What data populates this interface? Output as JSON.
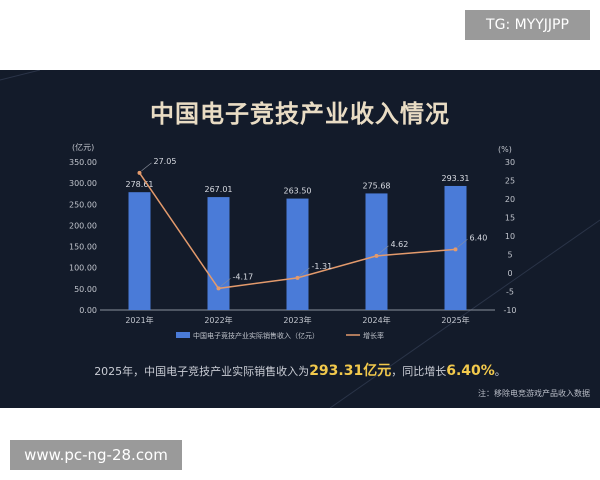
{
  "watermark_top": "TG: MYYJJPP",
  "watermark_bottom": "www.pc-ng-28.com",
  "summary": {
    "prefix": "2025年，中国电子竞技产业实际销售收入为",
    "value": "293.31亿元",
    "mid": "，同比增长",
    "growth": "6.40%",
    "suffix": "。"
  },
  "note": "注：移除电竞游戏产品收入数据",
  "chart_data": {
    "type": "bar",
    "title": "中国电子竞技产业收入情况",
    "categories": [
      "2021年",
      "2022年",
      "2023年",
      "2024年",
      "2025年"
    ],
    "y_left": {
      "unit": "(亿元)",
      "ylim": [
        0,
        350
      ],
      "ticks": [
        "0.00",
        "50.00",
        "100.00",
        "150.00",
        "200.00",
        "250.00",
        "300.00",
        "350.00"
      ]
    },
    "y_right": {
      "unit": "(%)",
      "ylim": [
        -10,
        30
      ],
      "ticks": [
        "-10",
        "-5",
        "0",
        "5",
        "10",
        "15",
        "20",
        "25",
        "30"
      ]
    },
    "series": [
      {
        "name": "中国电子竞技产业实际销售收入（亿元）",
        "type": "bar",
        "color": "#4a7bd8",
        "values": [
          278.61,
          267.01,
          263.5,
          275.68,
          293.31
        ],
        "labels": [
          "278.61",
          "267.01",
          "263.50",
          "275.68",
          "293.31"
        ]
      },
      {
        "name": "增长率",
        "type": "line",
        "axis": "right",
        "color": "#e39a6c",
        "values": [
          27.05,
          -4.17,
          -1.31,
          4.62,
          6.4
        ],
        "labels": [
          "27.05",
          "-4.17",
          "-1.31",
          "4.62",
          "6.40"
        ]
      }
    ],
    "grid": false,
    "legend": "bottom"
  }
}
